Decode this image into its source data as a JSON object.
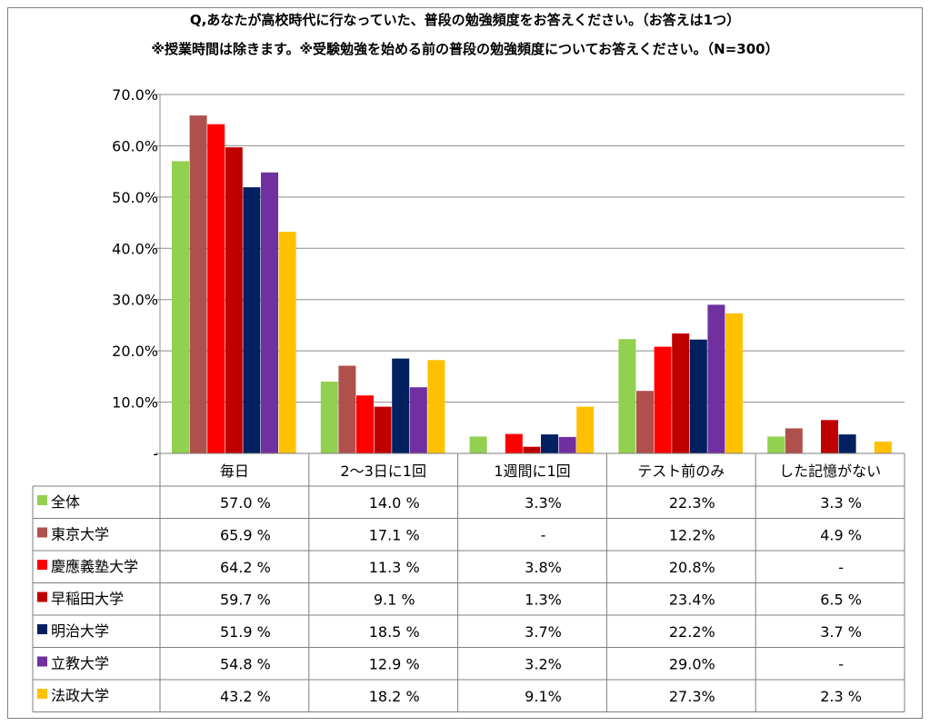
{
  "title_line1": "Q,あなたが高校時代に行なっていた、普段の勉強頻度をお答えください。（お答えは1つ）",
  "title_line2": "※授業時間は除きます。※受験勉強を始める前の普段の勉強頻度についてお答えください。（N=300）",
  "chart_data": {
    "type": "bar",
    "categories": [
      "毎日",
      "2～3日に1回",
      "1週間に1回",
      "テスト前のみ",
      "した記憶がない"
    ],
    "y_ticks": [
      "-",
      "10.0%",
      "20.0%",
      "30.0%",
      "40.0%",
      "50.0%",
      "60.0%",
      "70.0%"
    ],
    "ylim": [
      0,
      70
    ],
    "grid": true,
    "series": [
      {
        "name": "全体",
        "color": "#92d050",
        "values": [
          57.0,
          14.0,
          3.3,
          22.3,
          3.3
        ],
        "labels": [
          "57.0 %",
          "14.0 %",
          "3.3%",
          "22.3%",
          "3.3 %"
        ]
      },
      {
        "name": "東京大学",
        "color": "#b0504d",
        "values": [
          65.9,
          17.1,
          0,
          12.2,
          4.9
        ],
        "labels": [
          "65.9 %",
          "17.1 %",
          "-",
          "12.2%",
          "4.9 %"
        ]
      },
      {
        "name": "慶應義塾大学",
        "color": "#ff0000",
        "values": [
          64.2,
          11.3,
          3.8,
          20.8,
          0
        ],
        "labels": [
          "64.2 %",
          "11.3 %",
          "3.8%",
          "20.8%",
          "-"
        ]
      },
      {
        "name": "早稲田大学",
        "color": "#c00000",
        "values": [
          59.7,
          9.1,
          1.3,
          23.4,
          6.5
        ],
        "labels": [
          "59.7 %",
          "9.1 %",
          "1.3%",
          "23.4%",
          "6.5 %"
        ]
      },
      {
        "name": "明治大学",
        "color": "#002060",
        "values": [
          51.9,
          18.5,
          3.7,
          22.2,
          3.7
        ],
        "labels": [
          "51.9 %",
          "18.5 %",
          "3.7%",
          "22.2%",
          "3.7 %"
        ]
      },
      {
        "name": "立教大学",
        "color": "#7030a0",
        "values": [
          54.8,
          12.9,
          3.2,
          29.0,
          0
        ],
        "labels": [
          "54.8 %",
          "12.9 %",
          "3.2%",
          "29.0%",
          "-"
        ]
      },
      {
        "name": "法政大学",
        "color": "#ffc000",
        "values": [
          43.2,
          18.2,
          9.1,
          27.3,
          2.3
        ],
        "labels": [
          "43.2 %",
          "18.2 %",
          "9.1%",
          "27.3%",
          "2.3 %"
        ]
      }
    ]
  }
}
